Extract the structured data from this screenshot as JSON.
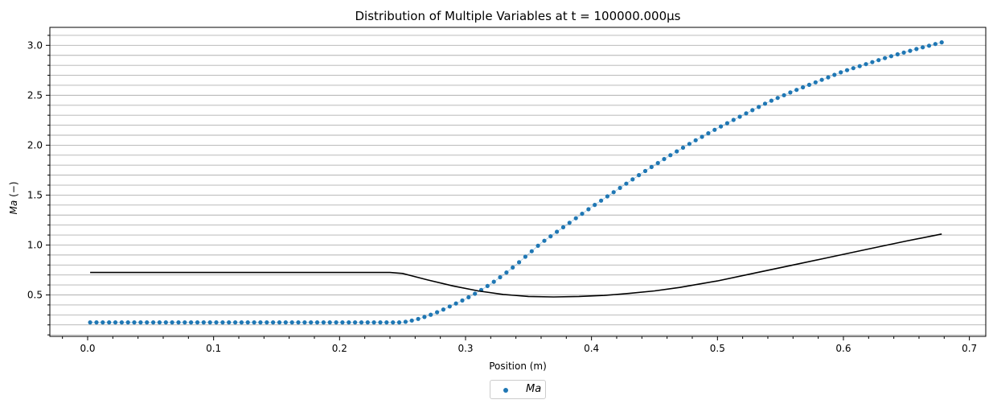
{
  "chart_data": {
    "type": "scatter",
    "title": "Distribution of Multiple Variables at t = 100000.000μs",
    "xlabel": "Position (m)",
    "ylabel": "Ma (−)",
    "xlim": [
      -0.03,
      0.713
    ],
    "ylim": [
      0.085,
      3.18
    ],
    "x_ticks": [
      0.0,
      0.1,
      0.2,
      0.3,
      0.4,
      0.5,
      0.6,
      0.7
    ],
    "x_tick_labels": [
      "0.0",
      "0.1",
      "0.2",
      "0.3",
      "0.4",
      "0.5",
      "0.6",
      "0.7"
    ],
    "y_ticks": [
      0.5,
      1.0,
      1.5,
      2.0,
      2.5,
      3.0
    ],
    "y_tick_labels": [
      "0.5",
      "1.0",
      "1.5",
      "2.0",
      "2.5",
      "3.0"
    ],
    "grid": "horizontal major and minor",
    "legend": {
      "placement": "below center",
      "entries": [
        "Ma"
      ]
    },
    "series": [
      {
        "name": "Ma",
        "kind": "scatter",
        "color": "#1f77b4",
        "x": [
          0.002,
          0.25,
          0.26,
          0.27,
          0.28,
          0.29,
          0.3,
          0.31,
          0.32,
          0.33,
          0.34,
          0.35,
          0.36,
          0.37,
          0.38,
          0.39,
          0.4,
          0.42,
          0.44,
          0.46,
          0.48,
          0.5,
          0.52,
          0.54,
          0.56,
          0.58,
          0.6,
          0.62,
          0.64,
          0.66,
          0.678
        ],
        "y": [
          0.225,
          0.225,
          0.25,
          0.29,
          0.34,
          0.4,
          0.46,
          0.53,
          0.61,
          0.7,
          0.8,
          0.91,
          1.02,
          1.11,
          1.2,
          1.29,
          1.38,
          1.55,
          1.72,
          1.88,
          2.03,
          2.17,
          2.3,
          2.43,
          2.54,
          2.64,
          2.74,
          2.82,
          2.9,
          2.97,
          3.03
        ]
      },
      {
        "kind": "line",
        "color": "#000000",
        "x": [
          0.002,
          0.24,
          0.25,
          0.27,
          0.29,
          0.31,
          0.33,
          0.35,
          0.37,
          0.39,
          0.41,
          0.43,
          0.45,
          0.47,
          0.5,
          0.53,
          0.56,
          0.59,
          0.62,
          0.65,
          0.678
        ],
        "y": [
          0.725,
          0.725,
          0.715,
          0.65,
          0.59,
          0.54,
          0.505,
          0.485,
          0.48,
          0.485,
          0.495,
          0.515,
          0.54,
          0.575,
          0.64,
          0.72,
          0.8,
          0.88,
          0.96,
          1.04,
          1.11
        ]
      }
    ]
  }
}
